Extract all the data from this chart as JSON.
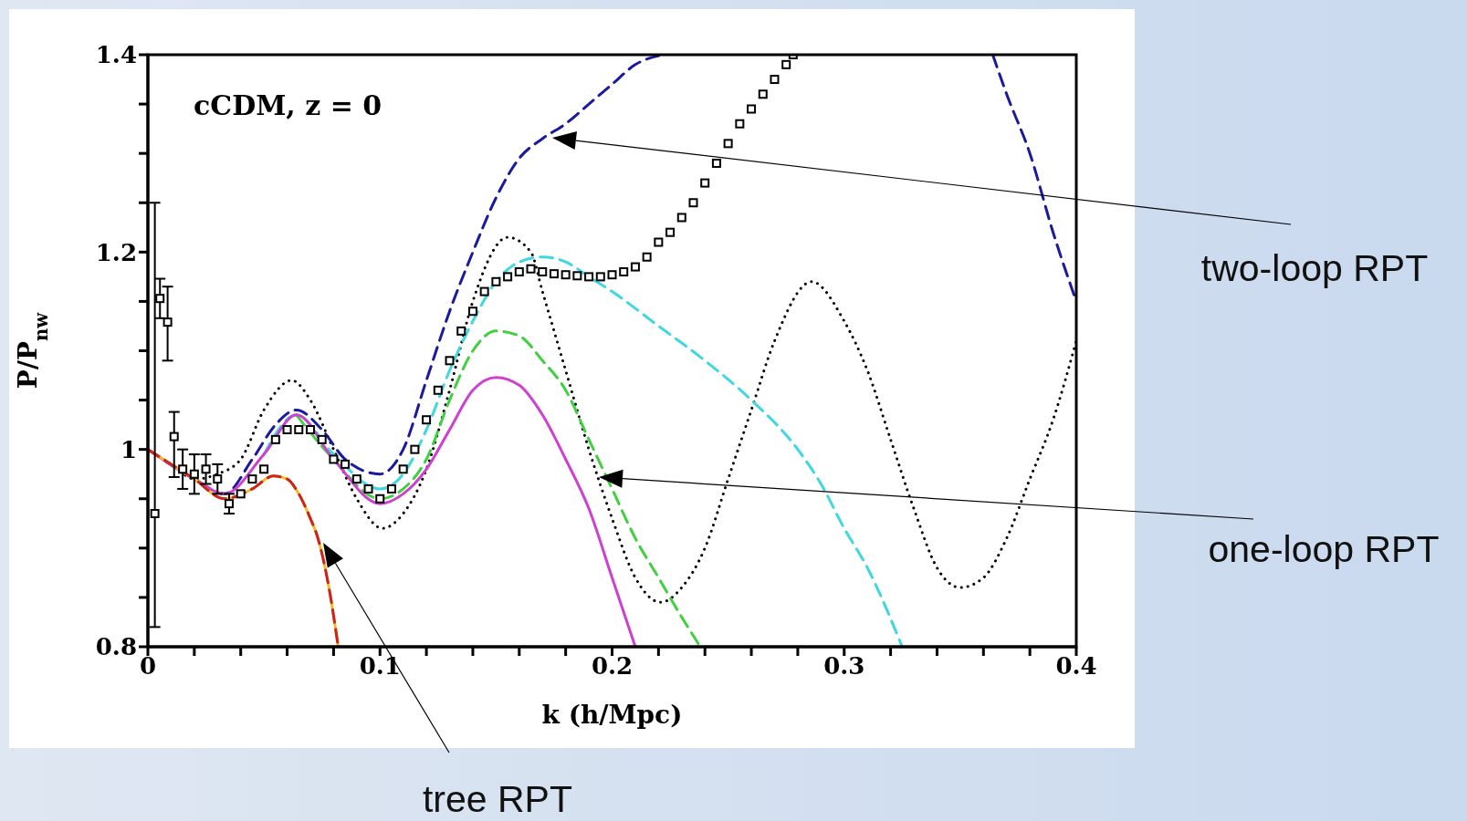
{
  "chart_data": {
    "type": "line",
    "xlabel": "k  (h/Mpc)",
    "ylabel": "P/P$_{nw}$",
    "annotations": [
      "cCDM, z = 0",
      "two-loop RPT",
      "one-loop RPT",
      "tree RPT"
    ],
    "xlim": [
      0,
      0.4
    ],
    "ylim": [
      0.8,
      1.4
    ],
    "xticks": [
      0,
      {
        "value": 0.02,
        "label": null
      },
      {
        "value": 0.04,
        "label": null
      },
      {
        "value": 0.06,
        "label": null
      },
      {
        "value": 0.08,
        "label": null
      },
      0.1,
      {
        "value": 0.12,
        "label": null
      },
      {
        "value": 0.14,
        "label": null
      },
      {
        "value": 0.16,
        "label": null
      },
      {
        "value": 0.18,
        "label": null
      },
      0.2,
      {
        "value": 0.22,
        "label": null
      },
      {
        "value": 0.24,
        "label": null
      },
      {
        "value": 0.26,
        "label": null
      },
      {
        "value": 0.28,
        "label": null
      },
      0.3,
      {
        "value": 0.32,
        "label": null
      },
      {
        "value": 0.34,
        "label": null
      },
      {
        "value": 0.36,
        "label": null
      },
      {
        "value": 0.38,
        "label": null
      },
      0.4
    ],
    "yticks": [
      0.8,
      {
        "value": 0.85,
        "label": null
      },
      {
        "value": 0.9,
        "label": null
      },
      {
        "value": 0.95,
        "label": null
      },
      1,
      {
        "value": 1.05,
        "label": null
      },
      {
        "value": 1.1,
        "label": null
      },
      {
        "value": 1.15,
        "label": null
      },
      1.2,
      {
        "value": 1.25,
        "label": null
      },
      {
        "value": 1.3,
        "label": null
      },
      {
        "value": 1.35,
        "label": null
      },
      1.4
    ],
    "series": [
      {
        "color": "#000000",
        "line_style": "dotted",
        "x": [
          0,
          0.01,
          0.02,
          0.03,
          0.04,
          0.05,
          0.062,
          0.07,
          0.08,
          0.09,
          0.101,
          0.11,
          0.12,
          0.13,
          0.14,
          0.155,
          0.165,
          0.17,
          0.18,
          0.19,
          0.2,
          0.21,
          0.221,
          0.23,
          0.24,
          0.25,
          0.26,
          0.27,
          0.286,
          0.3,
          0.31,
          0.32,
          0.33,
          0.34,
          0.35,
          0.36,
          0.37,
          0.38,
          0.39,
          0.4
        ],
        "values": [
          1.0,
          0.985,
          0.97,
          0.975,
          0.99,
          1.04,
          1.07,
          1.05,
          1.0,
          0.95,
          0.92,
          0.935,
          0.98,
          1.06,
          1.15,
          1.215,
          1.2,
          1.16,
          1.08,
          1.0,
          0.93,
          0.87,
          0.845,
          0.86,
          0.9,
          0.97,
          1.04,
          1.11,
          1.17,
          1.13,
          1.08,
          1.01,
          0.94,
          0.88,
          0.86,
          0.87,
          0.91,
          0.97,
          1.03,
          1.11
        ]
      },
      {
        "color": "#1a1aa0",
        "line_style": "dashed",
        "x": [
          0,
          0.02,
          0.033,
          0.045,
          0.055,
          0.064,
          0.075,
          0.085,
          0.1,
          0.11,
          0.12,
          0.13,
          0.14,
          0.15,
          0.16,
          0.17,
          0.18,
          0.19,
          0.2,
          0.21,
          0.222,
          0.23,
          0.364,
          0.37,
          0.38,
          0.39,
          0.4
        ],
        "values": [
          1.0,
          0.97,
          0.955,
          0.99,
          1.025,
          1.04,
          1.02,
          0.99,
          0.975,
          1.0,
          1.07,
          1.14,
          1.2,
          1.255,
          1.295,
          1.315,
          1.33,
          1.35,
          1.37,
          1.39,
          1.4,
          null,
          1.4,
          1.36,
          1.3,
          1.22,
          1.15
        ]
      },
      {
        "color": "#40d8e0",
        "line_style": "dashed",
        "x": [
          0.05,
          0.064,
          0.08,
          0.1,
          0.11,
          0.12,
          0.13,
          0.14,
          0.15,
          0.16,
          0.17,
          0.18,
          0.19,
          0.2,
          0.22,
          0.24,
          0.26,
          0.28,
          0.29,
          0.3,
          0.31,
          0.325
        ],
        "values": [
          0.995,
          1.035,
          0.995,
          0.96,
          0.975,
          1.02,
          1.08,
          1.13,
          1.17,
          1.19,
          1.195,
          1.19,
          1.175,
          1.16,
          1.125,
          1.09,
          1.05,
          1.0,
          0.965,
          0.92,
          0.88,
          0.8
        ]
      },
      {
        "color": "#40d040",
        "line_style": "dashed",
        "x": [
          0.064,
          0.08,
          0.1,
          0.11,
          0.12,
          0.13,
          0.14,
          0.15,
          0.16,
          0.17,
          0.18,
          0.19,
          0.2,
          0.21,
          0.22,
          0.23,
          0.238
        ],
        "values": [
          1.035,
          0.99,
          0.95,
          0.96,
          0.99,
          1.05,
          1.1,
          1.12,
          1.115,
          1.09,
          1.06,
          1.01,
          0.96,
          0.91,
          0.87,
          0.83,
          0.8
        ]
      },
      {
        "color": "#d040d0",
        "line_style": "solid",
        "x": [
          0,
          0.02,
          0.033,
          0.05,
          0.064,
          0.08,
          0.1,
          0.11,
          0.12,
          0.13,
          0.14,
          0.15,
          0.16,
          0.17,
          0.18,
          0.19,
          0.2,
          0.21
        ],
        "values": [
          1.0,
          0.97,
          0.955,
          0.995,
          1.035,
          0.99,
          0.945,
          0.955,
          0.98,
          1.02,
          1.06,
          1.073,
          1.065,
          1.035,
          0.99,
          0.94,
          0.87,
          0.8
        ]
      },
      {
        "color": "#f0c020",
        "line_style": "solid",
        "x": [
          0,
          0.01,
          0.02,
          0.033,
          0.045,
          0.054,
          0.06,
          0.065,
          0.07,
          0.073,
          0.078,
          0.082
        ],
        "values": [
          1.0,
          0.985,
          0.97,
          0.95,
          0.96,
          0.973,
          0.97,
          0.955,
          0.93,
          0.912,
          0.86,
          0.8
        ]
      },
      {
        "color": "#d02020",
        "line_style": "dashed",
        "x": [
          0,
          0.01,
          0.02,
          0.033,
          0.045,
          0.054,
          0.06,
          0.065,
          0.07,
          0.073,
          0.078,
          0.082
        ],
        "values": [
          1.0,
          0.985,
          0.97,
          0.95,
          0.96,
          0.973,
          0.97,
          0.955,
          0.93,
          0.912,
          0.86,
          0.8
        ]
      },
      {
        "type": "scatter",
        "color": "#000000",
        "marker": "square",
        "x": [
          0.003,
          0.0052,
          0.0085,
          0.0113,
          0.015,
          0.02,
          0.025,
          0.03,
          0.035,
          0.04,
          0.045,
          0.05,
          0.055,
          0.06,
          0.065,
          0.07,
          0.075,
          0.08,
          0.085,
          0.09,
          0.095,
          0.1,
          0.105,
          0.11,
          0.115,
          0.12,
          0.125,
          0.13,
          0.135,
          0.14,
          0.145,
          0.15,
          0.155,
          0.16,
          0.165,
          0.17,
          0.175,
          0.18,
          0.185,
          0.19,
          0.195,
          0.2,
          0.205,
          0.21,
          0.215,
          0.22,
          0.225,
          0.23,
          0.235,
          0.24,
          0.245,
          0.25,
          0.255,
          0.26,
          0.265,
          0.27,
          0.275,
          0.278
        ],
        "values": [
          0.935,
          1.153,
          1.129,
          1.013,
          0.98,
          0.975,
          0.98,
          0.97,
          0.945,
          0.955,
          0.97,
          0.98,
          1.01,
          1.02,
          1.02,
          1.02,
          1.01,
          0.99,
          0.985,
          0.97,
          0.96,
          0.95,
          0.96,
          0.98,
          1.0,
          1.03,
          1.06,
          1.09,
          1.12,
          1.14,
          1.16,
          1.17,
          1.175,
          1.18,
          1.183,
          1.18,
          1.178,
          1.177,
          1.176,
          1.175,
          1.175,
          1.177,
          1.18,
          1.185,
          1.195,
          1.21,
          1.22,
          1.235,
          1.25,
          1.27,
          1.29,
          1.31,
          1.33,
          1.345,
          1.36,
          1.375,
          1.39,
          1.4
        ],
        "errors": [
          [
            0.82,
            1.25
          ],
          0.02,
          [
            1.09,
            1.165
          ],
          [
            0.972,
            1.038
          ],
          0.02,
          0.02,
          0.015,
          0.015,
          0.01,
          null,
          null,
          null,
          null,
          null,
          null,
          null,
          null,
          null,
          null,
          null,
          null,
          null,
          null,
          null,
          null,
          null,
          null,
          null,
          null,
          null,
          null,
          null,
          null,
          null,
          null,
          null,
          null,
          null,
          null,
          null,
          null,
          null,
          null,
          null,
          null,
          null,
          null,
          null,
          null,
          null,
          null,
          null,
          null,
          null,
          null,
          null,
          null,
          null
        ]
      }
    ]
  }
}
